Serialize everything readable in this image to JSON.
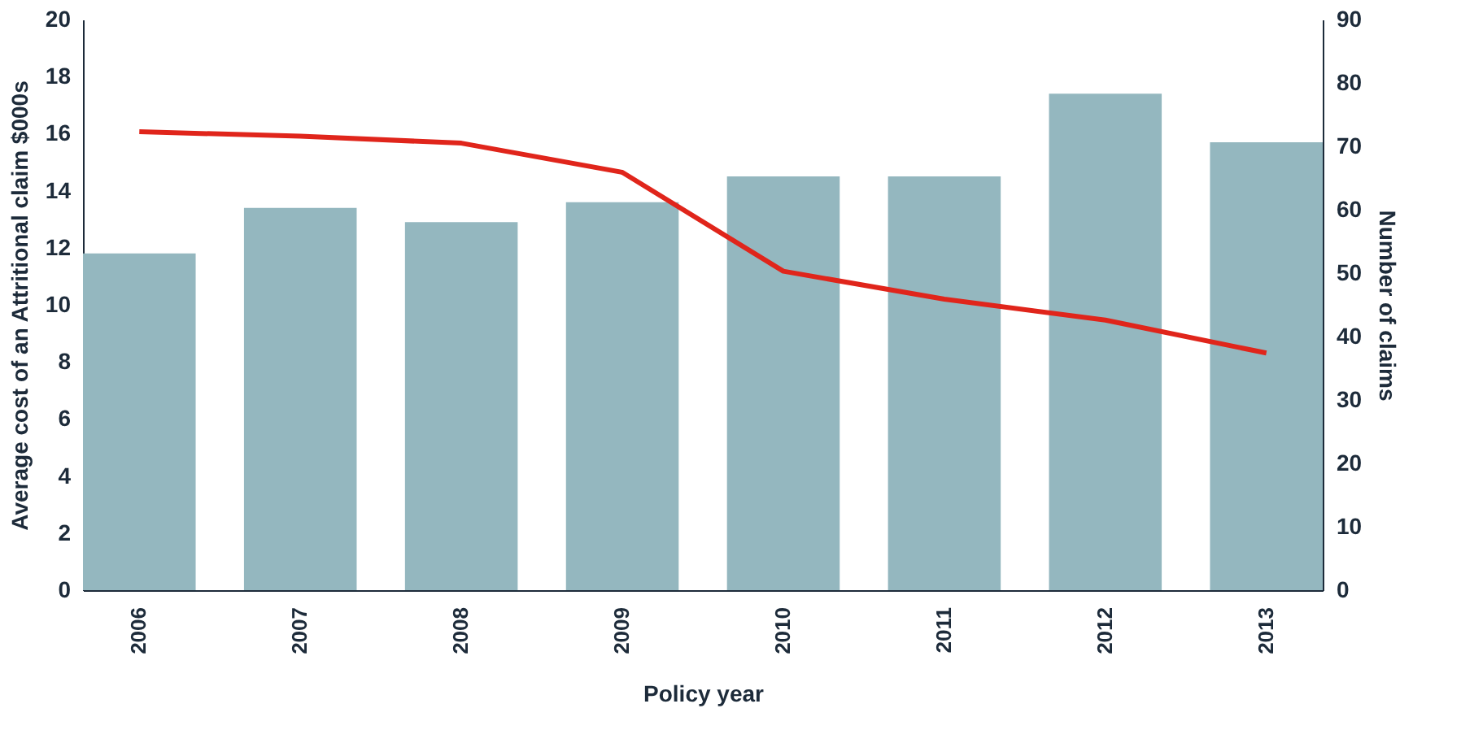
{
  "chart_data": {
    "type": "bar",
    "xlabel": "Policy year",
    "ylabel": "Average cost of an Attritional claim $000s",
    "y2label": "Number of claims",
    "categories": [
      "2006",
      "2007",
      "2008",
      "2009",
      "2010",
      "2011",
      "2012",
      "2013"
    ],
    "series": [
      {
        "color": "#94b7bf",
        "values": [
          11.8,
          13.4,
          12.9,
          13.6,
          14.5,
          14.5,
          17.4,
          15.7
        ]
      },
      {
        "type": "line",
        "axis": "y2",
        "color": "#e0251b",
        "values": [
          72.3,
          71.6,
          70.5,
          65.9,
          50.3,
          45.9,
          42.6,
          37.4
        ]
      }
    ],
    "ylim": [
      0,
      20
    ],
    "yticks": [
      0,
      2,
      4,
      6,
      8,
      10,
      12,
      14,
      16,
      18,
      20
    ],
    "y2lim": [
      0,
      90
    ],
    "y2ticks": [
      0,
      10,
      20,
      30,
      40,
      50,
      60,
      70,
      80,
      90
    ],
    "grid": false,
    "marker": "none",
    "line_style": "solid"
  }
}
